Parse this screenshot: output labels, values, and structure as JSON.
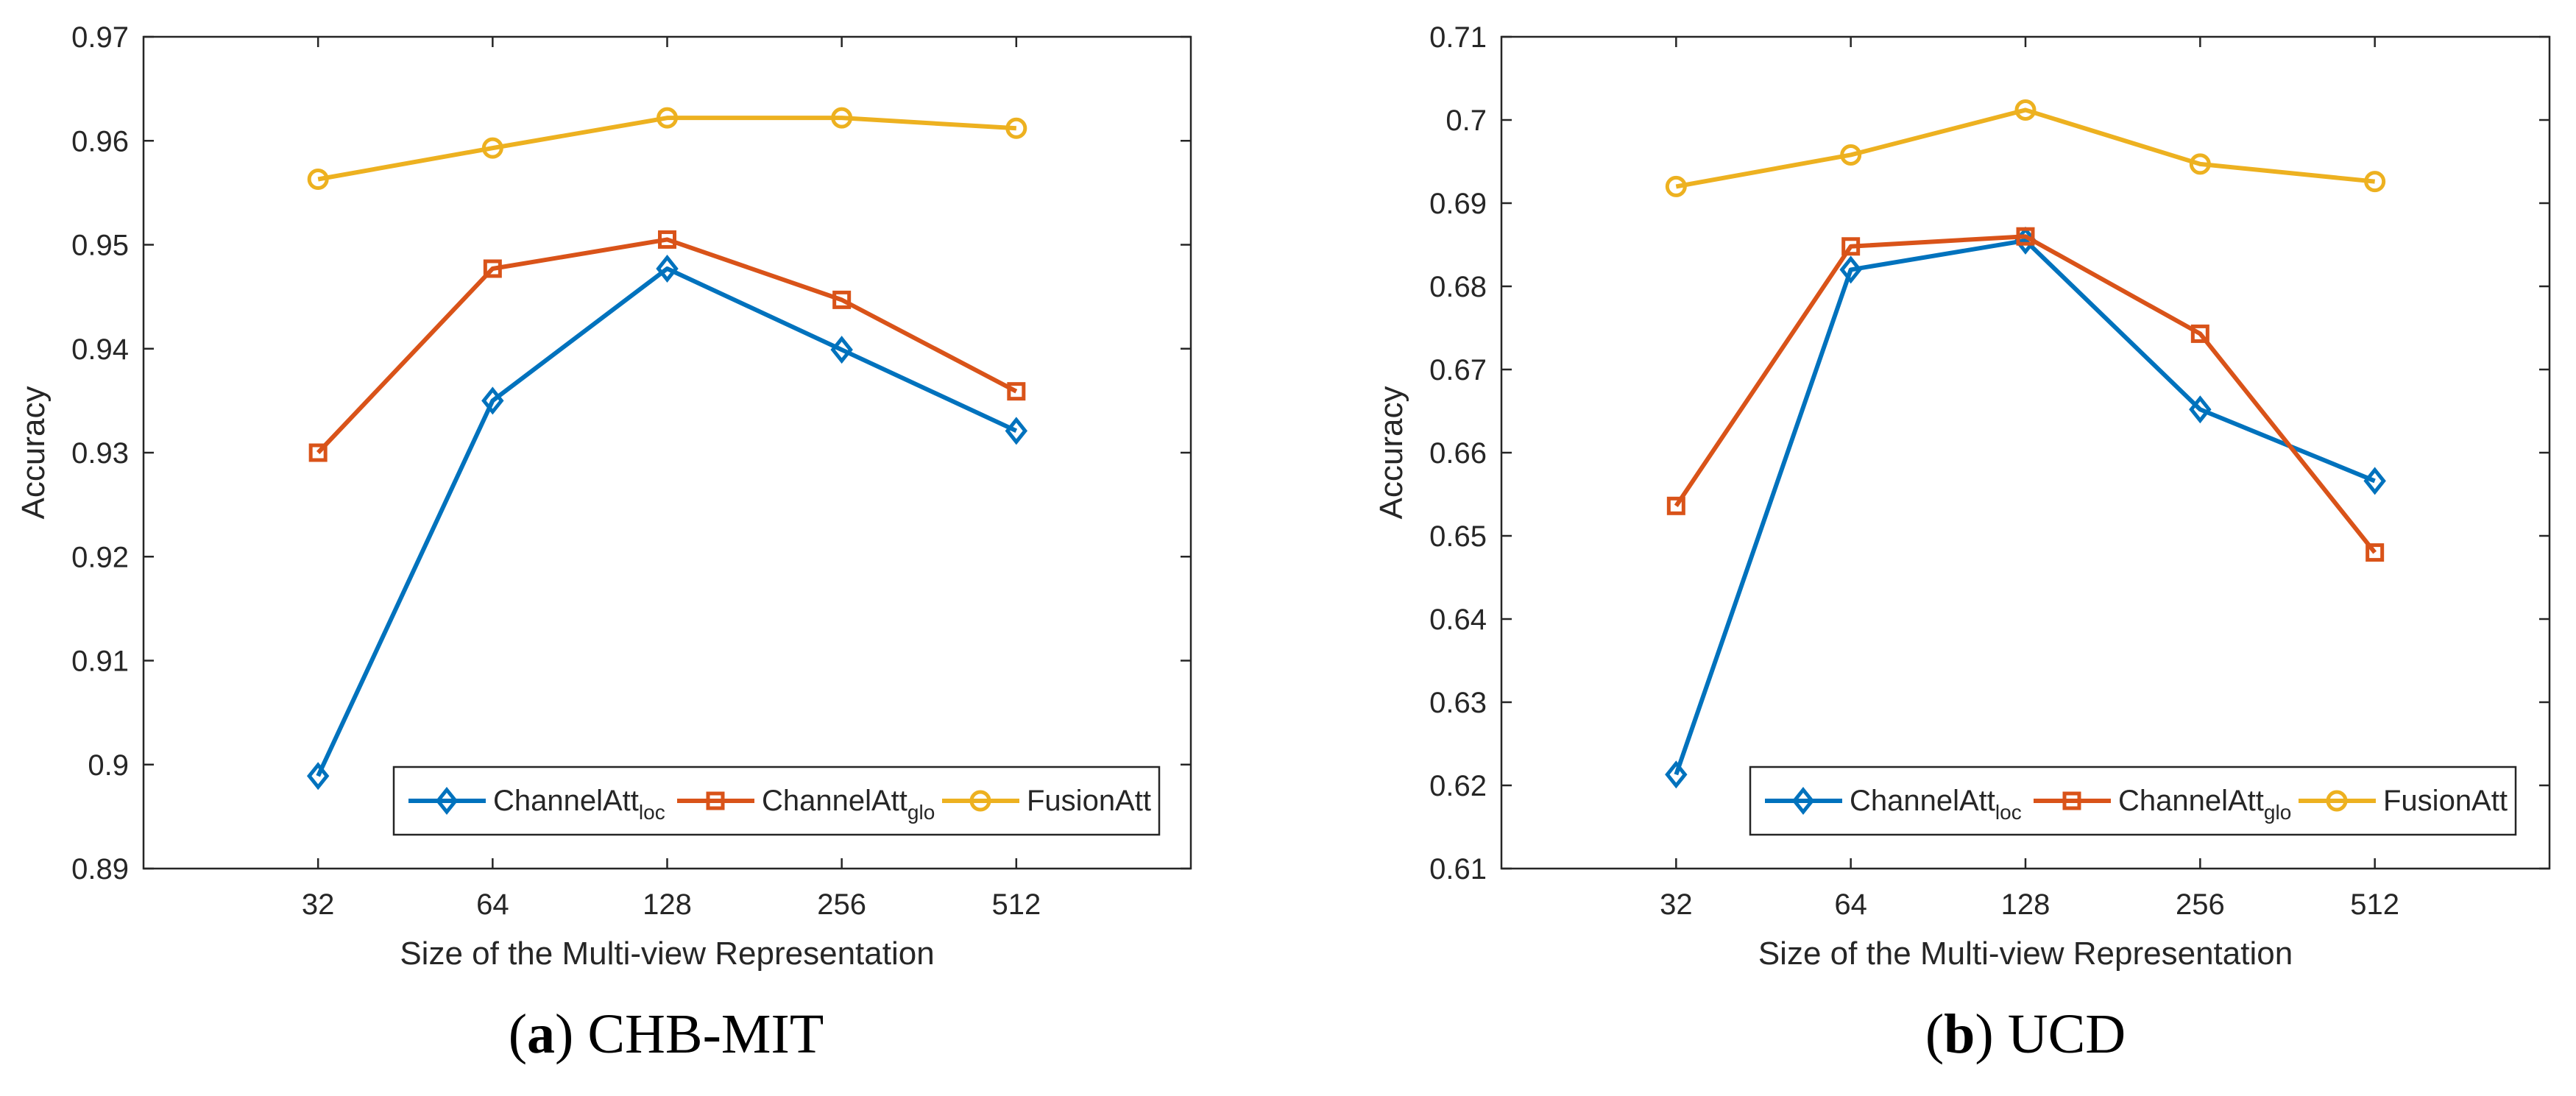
{
  "chart_data": [
    {
      "type": "line",
      "caption_letter": "a",
      "caption_text": "CHB-MIT",
      "xlabel": "Size of the Multi-view Representation",
      "ylabel": "Accuracy",
      "categories": [
        "32",
        "64",
        "128",
        "256",
        "512"
      ],
      "ylim": [
        0.89,
        0.97
      ],
      "yticks": [
        0.89,
        0.9,
        0.91,
        0.92,
        0.93,
        0.94,
        0.95,
        0.96,
        0.97
      ],
      "ytick_labels": [
        "0.89",
        "0.9",
        "0.91",
        "0.92",
        "0.93",
        "0.94",
        "0.95",
        "0.96",
        "0.97"
      ],
      "grid": false,
      "legend_position": "bottom-right",
      "series": [
        {
          "name": "ChannelAtt",
          "name_sub": "loc",
          "color": "#0072BD",
          "marker": "diamond",
          "values": [
            0.8989,
            0.935,
            0.9477,
            0.9399,
            0.9321
          ]
        },
        {
          "name": "ChannelAtt",
          "name_sub": "glo",
          "color": "#D95319",
          "marker": "square",
          "values": [
            0.93,
            0.9477,
            0.9505,
            0.9447,
            0.9359
          ]
        },
        {
          "name": "FusionAtt",
          "name_sub": "",
          "color": "#EDB120",
          "marker": "circle",
          "values": [
            0.9563,
            0.9593,
            0.9622,
            0.9622,
            0.9612
          ]
        }
      ]
    },
    {
      "type": "line",
      "caption_letter": "b",
      "caption_text": "UCD",
      "xlabel": "Size of the Multi-view Representation",
      "ylabel": "Accuracy",
      "categories": [
        "32",
        "64",
        "128",
        "256",
        "512"
      ],
      "ylim": [
        0.61,
        0.71
      ],
      "yticks": [
        0.61,
        0.62,
        0.63,
        0.64,
        0.65,
        0.66,
        0.67,
        0.68,
        0.69,
        0.7,
        0.71
      ],
      "ytick_labels": [
        "0.61",
        "0.62",
        "0.63",
        "0.64",
        "0.65",
        "0.66",
        "0.67",
        "0.68",
        "0.69",
        "0.7",
        "0.71"
      ],
      "grid": false,
      "legend_position": "bottom-right",
      "series": [
        {
          "name": "ChannelAtt",
          "name_sub": "loc",
          "color": "#0072BD",
          "marker": "diamond",
          "values": [
            0.6213,
            0.682,
            0.6855,
            0.6652,
            0.6566
          ]
        },
        {
          "name": "ChannelAtt",
          "name_sub": "glo",
          "color": "#D95319",
          "marker": "square",
          "values": [
            0.6536,
            0.6848,
            0.686,
            0.6743,
            0.648
          ]
        },
        {
          "name": "FusionAtt",
          "name_sub": "",
          "color": "#EDB120",
          "marker": "circle",
          "values": [
            0.692,
            0.6958,
            0.7012,
            0.6947,
            0.6926
          ]
        }
      ]
    }
  ]
}
